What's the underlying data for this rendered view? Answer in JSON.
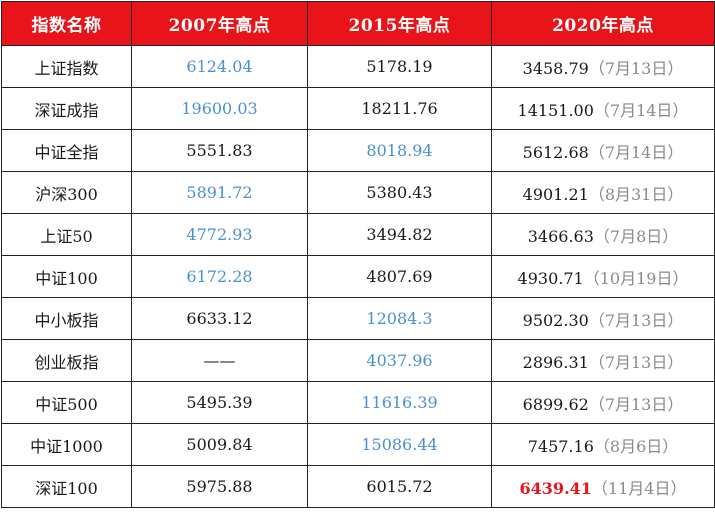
{
  "headers": [
    "指数名称",
    "2007年高点",
    "2015年高点",
    "2020年高点"
  ],
  "colors": {
    "header_bg": "#e8141a",
    "header_text": "#ffffff",
    "highlight_blue": "#4a90d0",
    "highlight_red": "#e8141a",
    "date_gray": "#8a8a8a"
  },
  "rows": [
    {
      "name": "上证指数",
      "v2007": "6124.04",
      "v2015": "5178.19",
      "v2020": "3458.79",
      "date2020": "（7月13日）",
      "hl2007": "blue",
      "hl2015": "",
      "hl2020": ""
    },
    {
      "name": "深证成指",
      "v2007": "19600.03",
      "v2015": "18211.76",
      "v2020": "14151.00",
      "date2020": "（7月14日）",
      "hl2007": "blue",
      "hl2015": "",
      "hl2020": ""
    },
    {
      "name": "中证全指",
      "v2007": "5551.83",
      "v2015": "8018.94",
      "v2020": "5612.68",
      "date2020": "（7月14日）",
      "hl2007": "",
      "hl2015": "blue",
      "hl2020": ""
    },
    {
      "name": "沪深300",
      "v2007": "5891.72",
      "v2015": "5380.43",
      "v2020": "4901.21",
      "date2020": "（8月31日）",
      "hl2007": "blue",
      "hl2015": "",
      "hl2020": ""
    },
    {
      "name": "上证50",
      "v2007": "4772.93",
      "v2015": "3494.82",
      "v2020": "3466.63",
      "date2020": "（7月8日）",
      "hl2007": "blue",
      "hl2015": "",
      "hl2020": ""
    },
    {
      "name": "中证100",
      "v2007": "6172.28",
      "v2015": "4807.69",
      "v2020": "4930.71",
      "date2020": "（10月19日）",
      "hl2007": "blue",
      "hl2015": "",
      "hl2020": ""
    },
    {
      "name": "中小板指",
      "v2007": "6633.12",
      "v2015": "12084.3",
      "v2020": "9502.30",
      "date2020": "（7月13日）",
      "hl2007": "",
      "hl2015": "blue",
      "hl2020": ""
    },
    {
      "name": "创业板指",
      "v2007": "——",
      "v2015": "4037.96",
      "v2020": "2896.31",
      "date2020": "（7月13日）",
      "hl2007": "",
      "hl2015": "blue",
      "hl2020": ""
    },
    {
      "name": "中证500",
      "v2007": "5495.39",
      "v2015": "11616.39",
      "v2020": "6899.62",
      "date2020": "（7月13日）",
      "hl2007": "",
      "hl2015": "blue",
      "hl2020": ""
    },
    {
      "name": "中证1000",
      "v2007": "5009.84",
      "v2015": "15086.44",
      "v2020": "7457.16",
      "date2020": "（8月6日）",
      "hl2007": "",
      "hl2015": "blue",
      "hl2020": ""
    },
    {
      "name": "深证100",
      "v2007": "5975.88",
      "v2015": "6015.72",
      "v2020": "6439.41",
      "date2020": "（11月4日）",
      "hl2007": "",
      "hl2015": "",
      "hl2020": "red"
    }
  ]
}
